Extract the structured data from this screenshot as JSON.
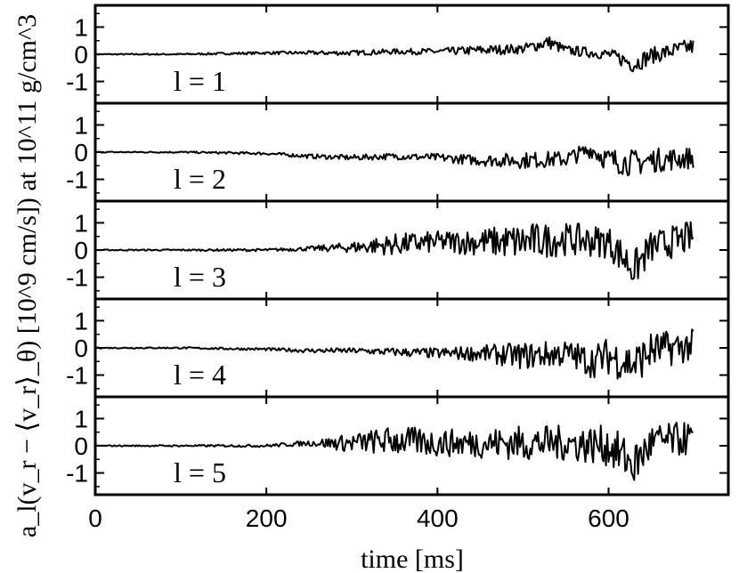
{
  "chart_data": {
    "type": "line",
    "xlabel": "time [ms]",
    "ylabel": "a_l(v_r − ⟨v_r⟩_θ) [10^9 cm/s]) at 10^11 g/cm^3",
    "xlim": [
      0,
      740
    ],
    "ylim": [
      -1.8,
      1.8
    ],
    "x_ticks": [
      0,
      200,
      400,
      600
    ],
    "x_tick_labels": [
      "0",
      "200",
      "400",
      "600"
    ],
    "y_ticks": [
      -1,
      0,
      1
    ],
    "y_tick_labels": [
      "-1",
      "0",
      "1"
    ],
    "grid": false,
    "series_color": "#000000",
    "panels": [
      {
        "label": "l = 1",
        "x": [
          0,
          100,
          200,
          250,
          300,
          350,
          400,
          450,
          500,
          530,
          550,
          600,
          630,
          650,
          700
        ],
        "y": [
          0,
          0,
          0.05,
          0.05,
          0.05,
          0.1,
          0.1,
          0.15,
          0.2,
          0.45,
          0.15,
          0.0,
          -0.35,
          -0.05,
          0.3
        ],
        "amp": [
          0.02,
          0.03,
          0.05,
          0.07,
          0.09,
          0.1,
          0.12,
          0.18,
          0.18,
          0.25,
          0.18,
          0.2,
          0.35,
          0.3,
          0.3
        ]
      },
      {
        "label": "l = 2",
        "x": [
          0,
          100,
          200,
          250,
          300,
          350,
          400,
          450,
          500,
          550,
          580,
          600,
          630,
          650,
          700
        ],
        "y": [
          0,
          0,
          -0.05,
          -0.15,
          -0.2,
          -0.15,
          -0.2,
          -0.3,
          -0.3,
          -0.25,
          0.1,
          -0.3,
          -0.4,
          -0.3,
          -0.2
        ],
        "amp": [
          0.02,
          0.03,
          0.05,
          0.08,
          0.1,
          0.12,
          0.15,
          0.2,
          0.3,
          0.3,
          0.3,
          0.45,
          0.5,
          0.45,
          0.4
        ]
      },
      {
        "label": "l = 3",
        "x": [
          0,
          100,
          200,
          250,
          300,
          350,
          400,
          450,
          500,
          550,
          600,
          630,
          650,
          700
        ],
        "y": [
          0,
          0,
          0,
          0.05,
          0.1,
          0.2,
          0.3,
          0.3,
          0.3,
          0.4,
          0.3,
          -0.7,
          0.1,
          0.5
        ],
        "amp": [
          0.02,
          0.03,
          0.05,
          0.08,
          0.2,
          0.4,
          0.4,
          0.5,
          0.7,
          0.6,
          0.6,
          0.7,
          0.6,
          0.6
        ]
      },
      {
        "label": "l = 4",
        "x": [
          0,
          100,
          200,
          250,
          300,
          350,
          400,
          450,
          500,
          550,
          580,
          600,
          630,
          650,
          700
        ],
        "y": [
          0,
          0,
          -0.05,
          -0.1,
          -0.1,
          -0.15,
          -0.2,
          -0.2,
          -0.3,
          -0.2,
          -0.5,
          -0.3,
          -0.6,
          -0.1,
          0.1
        ],
        "amp": [
          0.02,
          0.03,
          0.05,
          0.08,
          0.1,
          0.15,
          0.2,
          0.3,
          0.5,
          0.5,
          0.6,
          0.7,
          0.8,
          0.7,
          0.6
        ]
      },
      {
        "label": "l = 5",
        "x": [
          0,
          100,
          200,
          250,
          300,
          350,
          400,
          450,
          500,
          550,
          600,
          630,
          650,
          700
        ],
        "y": [
          0,
          0,
          0,
          0.1,
          0.1,
          0.2,
          0.1,
          0.1,
          0.1,
          0.1,
          0.0,
          -0.7,
          0.1,
          0.3
        ],
        "amp": [
          0.02,
          0.03,
          0.05,
          0.1,
          0.35,
          0.55,
          0.5,
          0.55,
          0.65,
          0.65,
          0.75,
          0.85,
          0.7,
          0.6
        ]
      }
    ]
  }
}
